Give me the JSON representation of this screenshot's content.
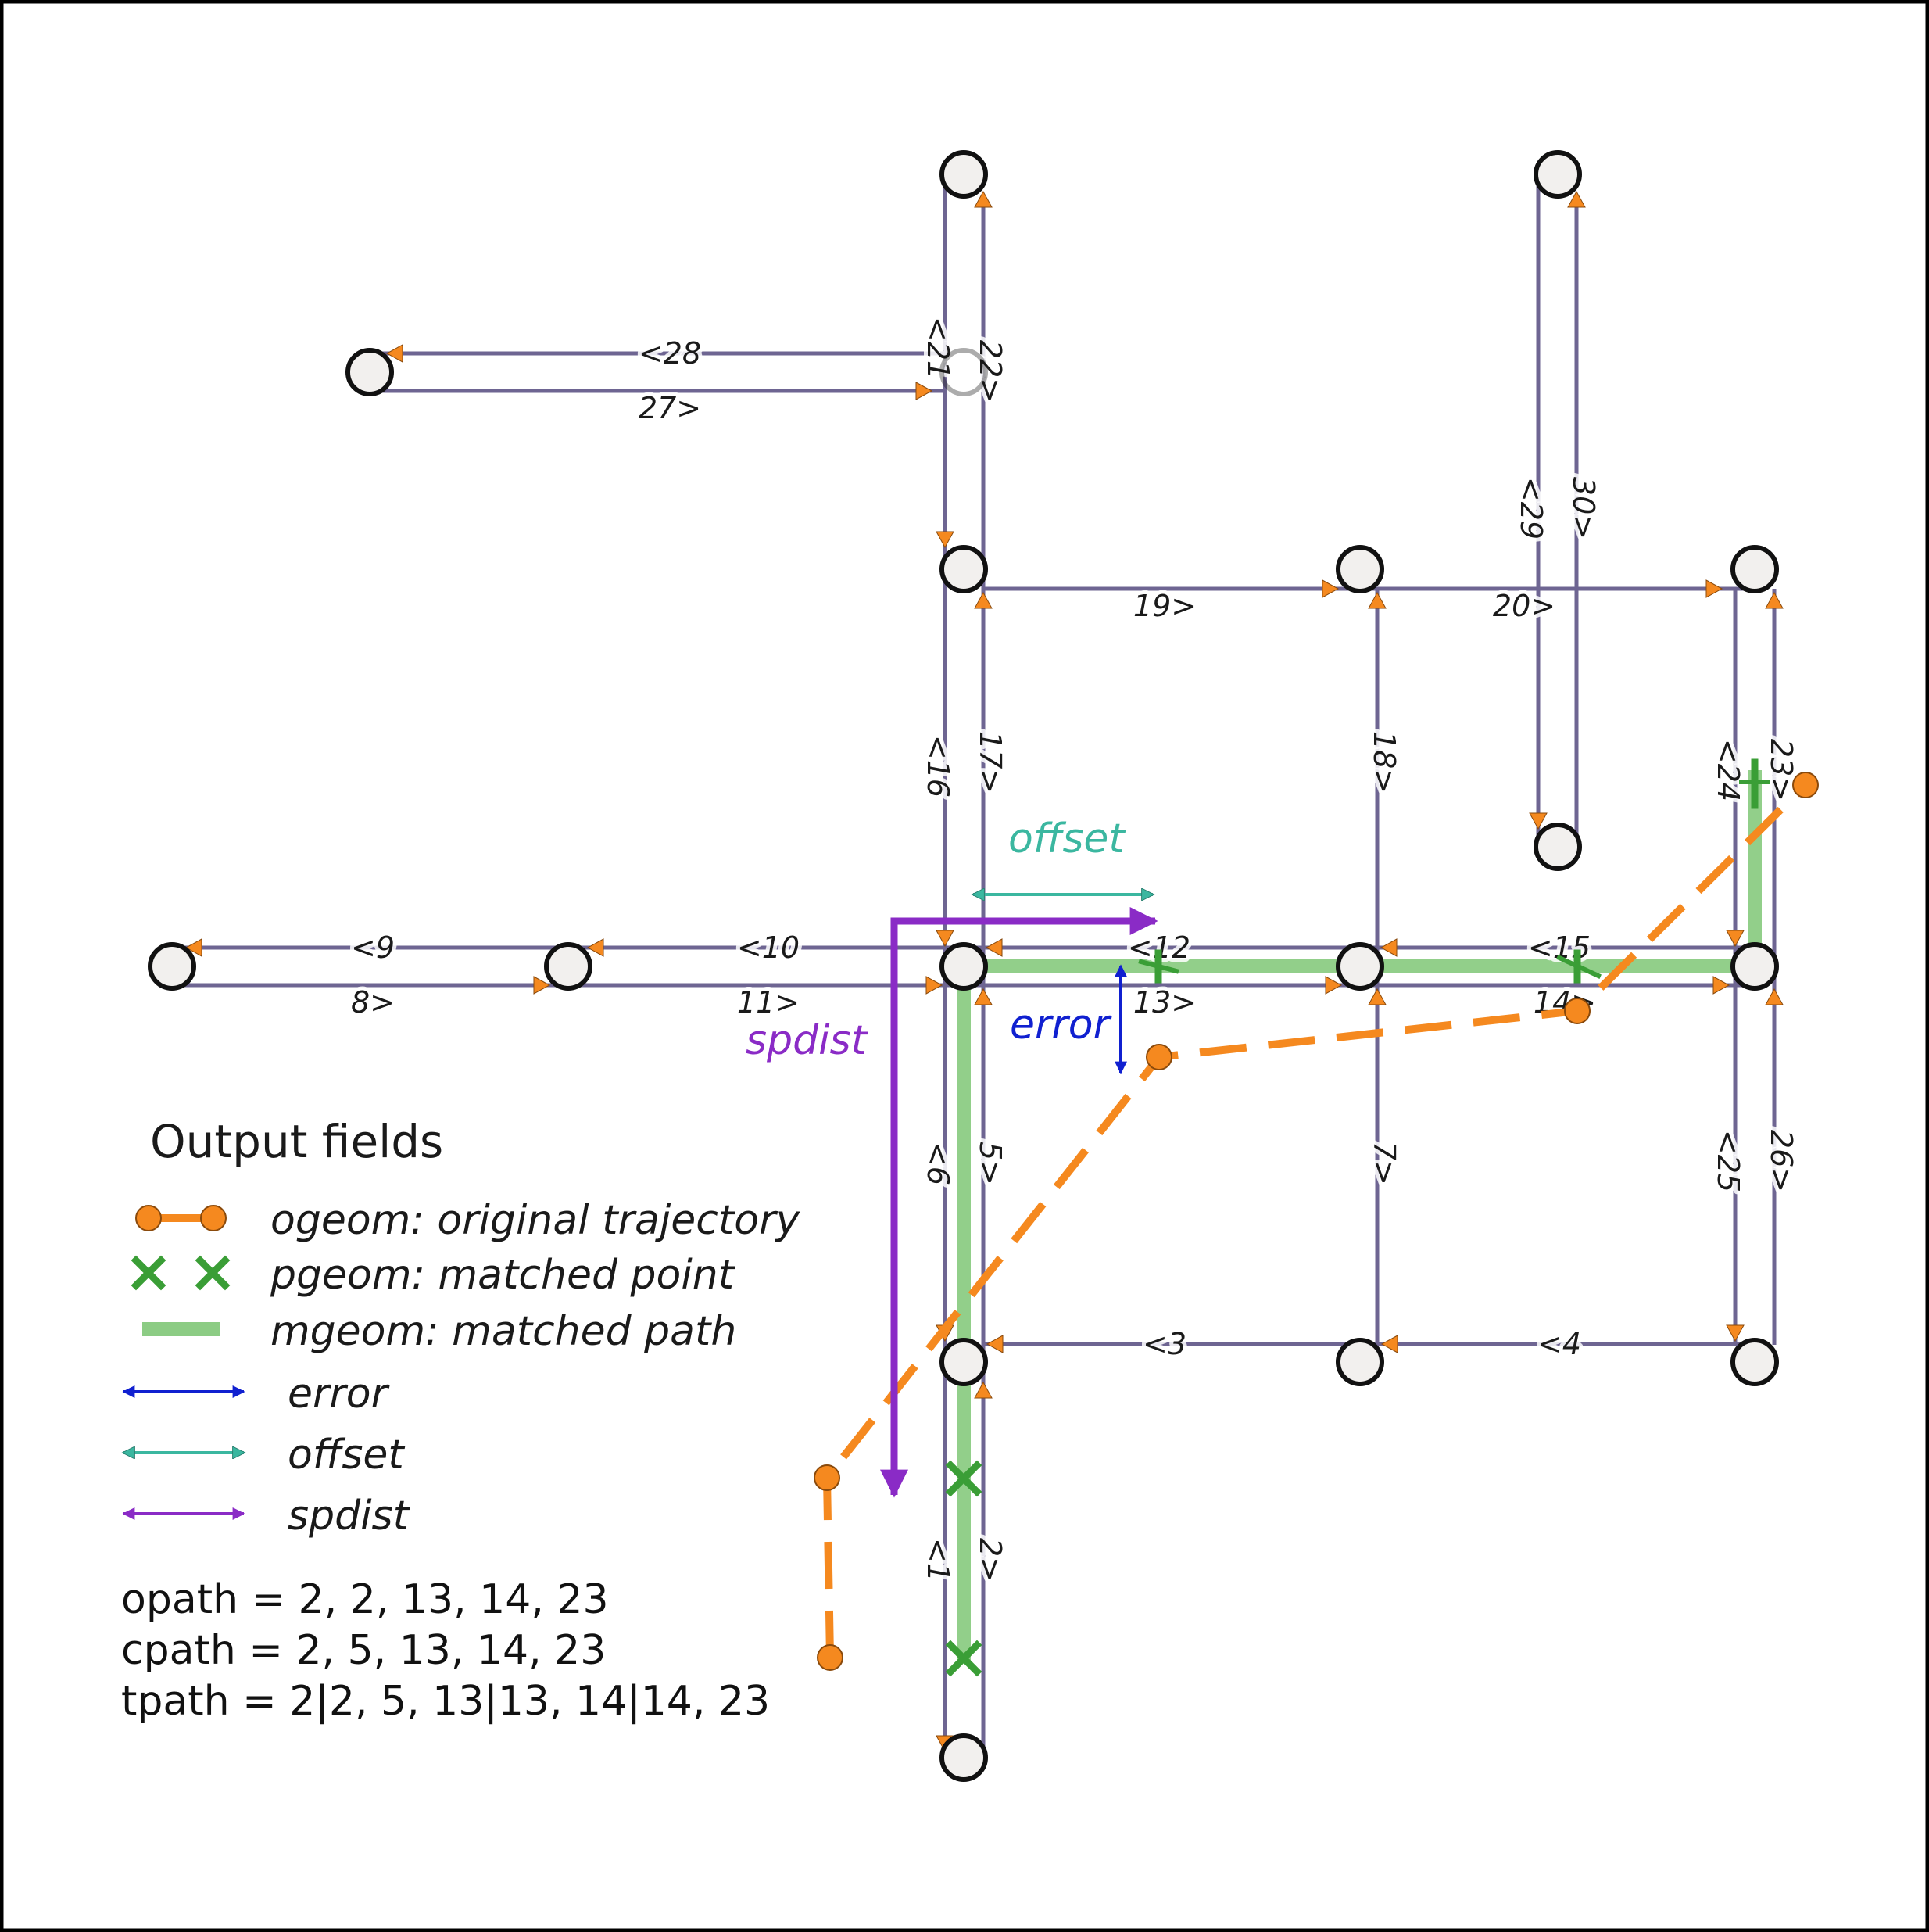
{
  "colors": {
    "edge": "#6e6592",
    "node_fill": "#f2f0ee",
    "arrowhead": "#f5891f",
    "ogeom": "#f5891f",
    "pgeom": "#3a9e36",
    "mgeom": "#8ccc84",
    "error": "#1020d0",
    "offset": "#3bb7a0",
    "spdist": "#8a2bc6"
  },
  "edge_labels": [
    "<28",
    "27>",
    "<21",
    "22>",
    "<29",
    "30>",
    "19>",
    "20>",
    "<16",
    "17>",
    "18>",
    "<24",
    "23>",
    "<9",
    "8>",
    "<10",
    "11>",
    "<12",
    "13>",
    "<15",
    "14>",
    "<6",
    "5>",
    "7>",
    "<25",
    "26>",
    "<3",
    "<4",
    "<1",
    "2>"
  ],
  "annotations": {
    "offset": "offset",
    "error": "error",
    "spdist": "spdist"
  },
  "legend": {
    "title": "Output fields",
    "items": [
      {
        "icon": "ogeom-line",
        "label": "ogeom: original trajectory"
      },
      {
        "icon": "pgeom-cross",
        "label": "pgeom: matched point"
      },
      {
        "icon": "mgeom-line",
        "label": "mgeom: matched path"
      },
      {
        "icon": "error-arrow",
        "label": "error"
      },
      {
        "icon": "offset-arrow",
        "label": "offset"
      },
      {
        "icon": "spdist-arrow",
        "label": "spdist"
      }
    ]
  },
  "paths": {
    "opath": "opath = 2, 2, 13, 14, 23",
    "cpath": "cpath = 2, 5, 13, 14, 23",
    "tpath": "tpath = 2|2, 5, 13|13, 14|14, 23"
  }
}
